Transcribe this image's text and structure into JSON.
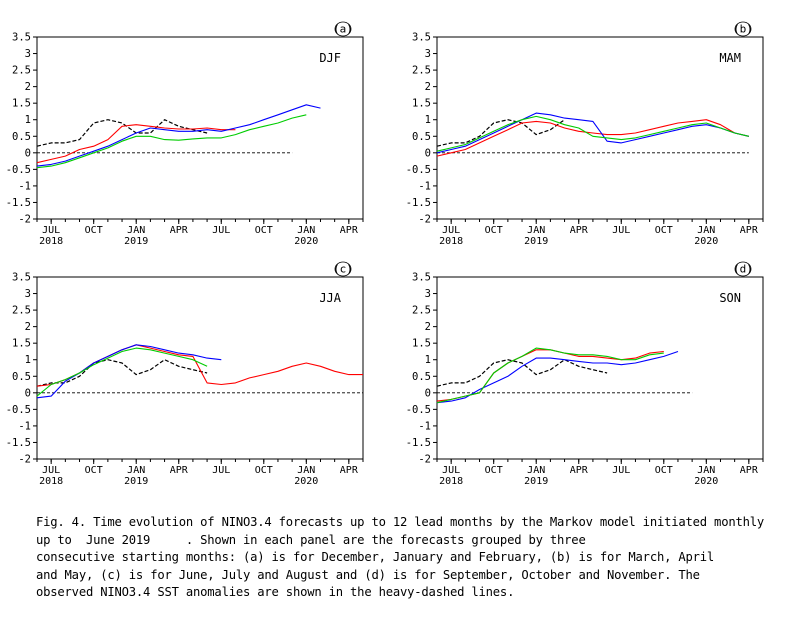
{
  "chart_data": [
    {
      "type": "line",
      "panel_label": "(a)",
      "season": "DJF",
      "ylim": [
        -2,
        3.5
      ],
      "yticks": [
        3.5,
        3,
        2.5,
        2,
        1.5,
        1,
        0.5,
        0,
        -0.5,
        -1,
        -1.5,
        -2
      ],
      "xlim": [
        "2018-06",
        "2020-05"
      ],
      "xticks": [
        {
          "month": "JUL",
          "year": "2018"
        },
        {
          "month": "OCT",
          "year": ""
        },
        {
          "month": "JAN",
          "year": "2019"
        },
        {
          "month": "APR",
          "year": ""
        },
        {
          "month": "JUL",
          "year": ""
        },
        {
          "month": "OCT",
          "year": ""
        },
        {
          "month": "JAN",
          "year": "2020"
        },
        {
          "month": "APR",
          "year": ""
        }
      ],
      "zero_line": {
        "from": "2018-06",
        "to": "2019-12",
        "style": "dashed"
      },
      "series": [
        {
          "color": "#000000",
          "style": "dashed",
          "x": [
            "2018-06",
            "2018-07",
            "2018-08",
            "2018-09",
            "2018-10",
            "2018-11",
            "2018-12",
            "2019-01",
            "2019-02",
            "2019-03",
            "2019-04",
            "2019-05",
            "2019-06"
          ],
          "y": [
            0.2,
            0.3,
            0.3,
            0.4,
            0.9,
            1.0,
            0.9,
            0.6,
            0.6,
            1.0,
            0.8,
            0.7,
            0.6
          ]
        },
        {
          "color": "#ff0000",
          "style": "solid",
          "x": [
            "2018-06",
            "2018-07",
            "2018-08",
            "2018-09",
            "2018-10",
            "2018-11",
            "2018-12",
            "2019-01",
            "2019-02",
            "2019-03",
            "2019-04",
            "2019-05",
            "2019-06",
            "2019-07",
            "2019-08"
          ],
          "y": [
            -0.3,
            -0.2,
            -0.1,
            0.1,
            0.2,
            0.4,
            0.8,
            0.85,
            0.8,
            0.75,
            0.72,
            0.72,
            0.75,
            0.7,
            0.7
          ]
        },
        {
          "color": "#0000ff",
          "style": "solid",
          "x": [
            "2018-06",
            "2018-07",
            "2018-08",
            "2018-09",
            "2018-10",
            "2018-11",
            "2018-12",
            "2019-01",
            "2019-02",
            "2019-03",
            "2019-04",
            "2019-05",
            "2019-06",
            "2019-07",
            "2019-08",
            "2019-09",
            "2019-10",
            "2019-11",
            "2019-12",
            "2020-01",
            "2020-02"
          ],
          "y": [
            -0.4,
            -0.35,
            -0.25,
            -0.1,
            0.05,
            0.2,
            0.4,
            0.6,
            0.75,
            0.7,
            0.65,
            0.65,
            0.7,
            0.65,
            0.75,
            0.85,
            1.0,
            1.15,
            1.3,
            1.45,
            1.35
          ]
        },
        {
          "color": "#00cc00",
          "style": "solid",
          "x": [
            "2018-06",
            "2018-07",
            "2018-08",
            "2018-09",
            "2018-10",
            "2018-11",
            "2018-12",
            "2019-01",
            "2019-02",
            "2019-03",
            "2019-04",
            "2019-05",
            "2019-06",
            "2019-07",
            "2019-08",
            "2019-09",
            "2019-10",
            "2019-11",
            "2019-12",
            "2020-01"
          ],
          "y": [
            -0.45,
            -0.4,
            -0.3,
            -0.15,
            0.0,
            0.15,
            0.35,
            0.5,
            0.5,
            0.4,
            0.38,
            0.42,
            0.45,
            0.45,
            0.55,
            0.7,
            0.8,
            0.9,
            1.05,
            1.15
          ]
        }
      ]
    },
    {
      "type": "line",
      "panel_label": "(b)",
      "season": "MAM",
      "ylim": [
        -2,
        3.5
      ],
      "yticks": [
        3.5,
        3,
        2.5,
        2,
        1.5,
        1,
        0.5,
        0,
        -0.5,
        -1,
        -1.5,
        -2
      ],
      "xlim": [
        "2018-06",
        "2020-05"
      ],
      "xticks": [
        {
          "month": "JUL",
          "year": "2018"
        },
        {
          "month": "OCT",
          "year": ""
        },
        {
          "month": "JAN",
          "year": "2019"
        },
        {
          "month": "APR",
          "year": ""
        },
        {
          "month": "JUL",
          "year": ""
        },
        {
          "month": "OCT",
          "year": ""
        },
        {
          "month": "JAN",
          "year": "2020"
        },
        {
          "month": "APR",
          "year": ""
        }
      ],
      "zero_line": {
        "from": "2018-06",
        "to": "2020-04",
        "style": "dashed"
      },
      "series": [
        {
          "color": "#000000",
          "style": "dashed",
          "x": [
            "2018-06",
            "2018-07",
            "2018-08",
            "2018-09",
            "2018-10",
            "2018-11",
            "2018-12",
            "2019-01",
            "2019-02",
            "2019-03"
          ],
          "y": [
            0.2,
            0.3,
            0.3,
            0.5,
            0.9,
            1.0,
            0.9,
            0.55,
            0.7,
            1.0
          ]
        },
        {
          "color": "#ff0000",
          "style": "solid",
          "x": [
            "2018-06",
            "2018-07",
            "2018-08",
            "2018-09",
            "2018-10",
            "2018-11",
            "2018-12",
            "2019-01",
            "2019-02",
            "2019-03",
            "2019-04",
            "2019-05",
            "2019-06",
            "2019-07",
            "2019-08",
            "2019-09",
            "2019-10",
            "2019-11",
            "2019-12",
            "2020-01",
            "2020-02",
            "2020-03",
            "2020-04"
          ],
          "y": [
            -0.1,
            0.0,
            0.1,
            0.3,
            0.5,
            0.7,
            0.9,
            0.95,
            0.9,
            0.75,
            0.65,
            0.6,
            0.55,
            0.55,
            0.6,
            0.7,
            0.8,
            0.9,
            0.95,
            1.0,
            0.85,
            0.6,
            0.5
          ]
        },
        {
          "color": "#0000ff",
          "style": "solid",
          "x": [
            "2018-06",
            "2018-07",
            "2018-08",
            "2018-09",
            "2018-10",
            "2018-11",
            "2018-12",
            "2019-01",
            "2019-02",
            "2019-03",
            "2019-04",
            "2019-05",
            "2019-06",
            "2019-07",
            "2019-08",
            "2019-09",
            "2019-10",
            "2019-11",
            "2019-12",
            "2020-01",
            "2020-02",
            "2020-03",
            "2020-04"
          ],
          "y": [
            0.0,
            0.1,
            0.2,
            0.4,
            0.6,
            0.8,
            1.0,
            1.2,
            1.15,
            1.05,
            1.0,
            0.95,
            0.35,
            0.3,
            0.4,
            0.5,
            0.6,
            0.7,
            0.8,
            0.85,
            0.75,
            0.6,
            0.5
          ]
        },
        {
          "color": "#00cc00",
          "style": "solid",
          "x": [
            "2018-06",
            "2018-07",
            "2018-08",
            "2018-09",
            "2018-10",
            "2018-11",
            "2018-12",
            "2019-01",
            "2019-02",
            "2019-03",
            "2019-04",
            "2019-05",
            "2019-06",
            "2019-07",
            "2019-08",
            "2019-09",
            "2019-10",
            "2019-11",
            "2019-12",
            "2020-01",
            "2020-02",
            "2020-03",
            "2020-04"
          ],
          "y": [
            0.05,
            0.15,
            0.25,
            0.45,
            0.65,
            0.85,
            1.0,
            1.1,
            1.0,
            0.85,
            0.75,
            0.5,
            0.45,
            0.4,
            0.45,
            0.55,
            0.65,
            0.75,
            0.85,
            0.9,
            0.75,
            0.6,
            0.5
          ]
        }
      ]
    },
    {
      "type": "line",
      "panel_label": "(c)",
      "season": "JJA",
      "ylim": [
        -2,
        3.5
      ],
      "yticks": [
        3.5,
        3,
        2.5,
        2,
        1.5,
        1,
        0.5,
        0,
        -0.5,
        -1,
        -1.5,
        -2
      ],
      "xlim": [
        "2018-06",
        "2020-05"
      ],
      "xticks": [
        {
          "month": "JUL",
          "year": "2018"
        },
        {
          "month": "OCT",
          "year": ""
        },
        {
          "month": "JAN",
          "year": "2019"
        },
        {
          "month": "APR",
          "year": ""
        },
        {
          "month": "JUL",
          "year": ""
        },
        {
          "month": "OCT",
          "year": ""
        },
        {
          "month": "JAN",
          "year": "2020"
        },
        {
          "month": "APR",
          "year": ""
        }
      ],
      "zero_line": {
        "from": "2018-06",
        "to": "2020-05",
        "style": "dashed"
      },
      "series": [
        {
          "color": "#000000",
          "style": "dashed",
          "x": [
            "2018-06",
            "2018-07",
            "2018-08",
            "2018-09",
            "2018-10",
            "2018-11",
            "2018-12",
            "2019-01",
            "2019-02",
            "2019-03",
            "2019-04",
            "2019-05",
            "2019-06"
          ],
          "y": [
            0.2,
            0.3,
            0.3,
            0.5,
            0.9,
            1.0,
            0.9,
            0.55,
            0.7,
            1.0,
            0.8,
            0.7,
            0.6
          ]
        },
        {
          "color": "#ff0000",
          "style": "solid",
          "x": [
            "2018-06",
            "2018-07",
            "2018-08",
            "2018-09",
            "2018-10",
            "2018-11",
            "2018-12",
            "2019-01",
            "2019-02",
            "2019-03",
            "2019-04",
            "2019-05",
            "2019-06",
            "2019-07",
            "2019-08",
            "2019-09",
            "2019-10",
            "2019-11",
            "2019-12",
            "2020-01",
            "2020-02",
            "2020-03",
            "2020-04",
            "2020-05"
          ],
          "y": [
            0.2,
            0.25,
            0.4,
            0.6,
            0.9,
            1.1,
            1.3,
            1.45,
            1.35,
            1.25,
            1.15,
            1.1,
            0.3,
            0.25,
            0.3,
            0.45,
            0.55,
            0.65,
            0.8,
            0.9,
            0.8,
            0.65,
            0.55,
            0.55
          ]
        },
        {
          "color": "#0000ff",
          "style": "solid",
          "x": [
            "2018-06",
            "2018-07",
            "2018-08",
            "2018-09",
            "2018-10",
            "2018-11",
            "2018-12",
            "2019-01",
            "2019-02",
            "2019-03",
            "2019-04",
            "2019-05",
            "2019-06",
            "2019-07"
          ],
          "y": [
            -0.15,
            -0.1,
            0.35,
            0.6,
            0.9,
            1.1,
            1.3,
            1.45,
            1.4,
            1.3,
            1.2,
            1.15,
            1.05,
            1.0
          ]
        },
        {
          "color": "#00cc00",
          "style": "solid",
          "x": [
            "2018-06",
            "2018-07",
            "2018-08",
            "2018-09",
            "2018-10",
            "2018-11",
            "2018-12",
            "2019-01",
            "2019-02",
            "2019-03",
            "2019-04",
            "2019-05",
            "2019-06"
          ],
          "y": [
            -0.1,
            0.25,
            0.4,
            0.6,
            0.85,
            1.05,
            1.25,
            1.35,
            1.3,
            1.2,
            1.1,
            1.0,
            0.8
          ]
        }
      ]
    },
    {
      "type": "line",
      "panel_label": "(d)",
      "season": "SON",
      "ylim": [
        -2,
        3.5
      ],
      "yticks": [
        3.5,
        3,
        2.5,
        2,
        1.5,
        1,
        0.5,
        0,
        -0.5,
        -1,
        -1.5,
        -2
      ],
      "xlim": [
        "2018-06",
        "2020-05"
      ],
      "xticks": [
        {
          "month": "JUL",
          "year": "2018"
        },
        {
          "month": "OCT",
          "year": ""
        },
        {
          "month": "JAN",
          "year": "2019"
        },
        {
          "month": "APR",
          "year": ""
        },
        {
          "month": "JUL",
          "year": ""
        },
        {
          "month": "OCT",
          "year": ""
        },
        {
          "month": "JAN",
          "year": "2020"
        },
        {
          "month": "APR",
          "year": ""
        }
      ],
      "zero_line": {
        "from": "2018-06",
        "to": "2019-12",
        "style": "dashed"
      },
      "series": [
        {
          "color": "#000000",
          "style": "dashed",
          "x": [
            "2018-06",
            "2018-07",
            "2018-08",
            "2018-09",
            "2018-10",
            "2018-11",
            "2018-12",
            "2019-01",
            "2019-02",
            "2019-03",
            "2019-04",
            "2019-05",
            "2019-06"
          ],
          "y": [
            0.2,
            0.3,
            0.3,
            0.5,
            0.9,
            1.0,
            0.9,
            0.55,
            0.7,
            1.0,
            0.8,
            0.7,
            0.6
          ]
        },
        {
          "color": "#ff0000",
          "style": "solid",
          "x": [
            "2018-06",
            "2018-07",
            "2018-08",
            "2018-09",
            "2018-10",
            "2018-11",
            "2018-12",
            "2019-01",
            "2019-02",
            "2019-03",
            "2019-04",
            "2019-05",
            "2019-06",
            "2019-07",
            "2019-08",
            "2019-09",
            "2019-10"
          ],
          "y": [
            -0.25,
            -0.2,
            -0.1,
            0.0,
            0.6,
            0.9,
            1.1,
            1.3,
            1.3,
            1.2,
            1.1,
            1.1,
            1.05,
            1.0,
            1.05,
            1.2,
            1.25
          ]
        },
        {
          "color": "#0000ff",
          "style": "solid",
          "x": [
            "2018-06",
            "2018-07",
            "2018-08",
            "2018-09",
            "2018-10",
            "2018-11",
            "2018-12",
            "2019-01",
            "2019-02",
            "2019-03",
            "2019-04",
            "2019-05",
            "2019-06",
            "2019-07",
            "2019-08",
            "2019-09",
            "2019-10",
            "2019-11"
          ],
          "y": [
            -0.3,
            -0.25,
            -0.15,
            0.1,
            0.3,
            0.5,
            0.8,
            1.05,
            1.05,
            1.0,
            0.95,
            0.9,
            0.9,
            0.85,
            0.9,
            1.0,
            1.1,
            1.25
          ]
        },
        {
          "color": "#00cc00",
          "style": "solid",
          "x": [
            "2018-06",
            "2018-07",
            "2018-08",
            "2018-09",
            "2018-10",
            "2018-11",
            "2018-12",
            "2019-01",
            "2019-02",
            "2019-03",
            "2019-04",
            "2019-05",
            "2019-06",
            "2019-07",
            "2019-08",
            "2019-09",
            "2019-10"
          ],
          "y": [
            -0.3,
            -0.2,
            -0.1,
            0.0,
            0.6,
            0.9,
            1.1,
            1.35,
            1.3,
            1.2,
            1.15,
            1.15,
            1.1,
            1.0,
            1.0,
            1.15,
            1.2
          ]
        }
      ]
    }
  ],
  "caption": {
    "line1": "Fig. 4. Time evolution of NINO3.4 forecasts up to 12 lead months by the Markov model initiated monthly",
    "line2": "up to  June 2019     . Shown in each panel are the forecasts grouped by three",
    "line3": "consecutive starting months: (a) is for December, January and February, (b) is for March, April",
    "line4": "and May, (c) is for June, July and August and (d) is for September, October and November. The",
    "line5": "observed NINO3.4 SST anomalies are shown in the heavy-dashed lines."
  }
}
